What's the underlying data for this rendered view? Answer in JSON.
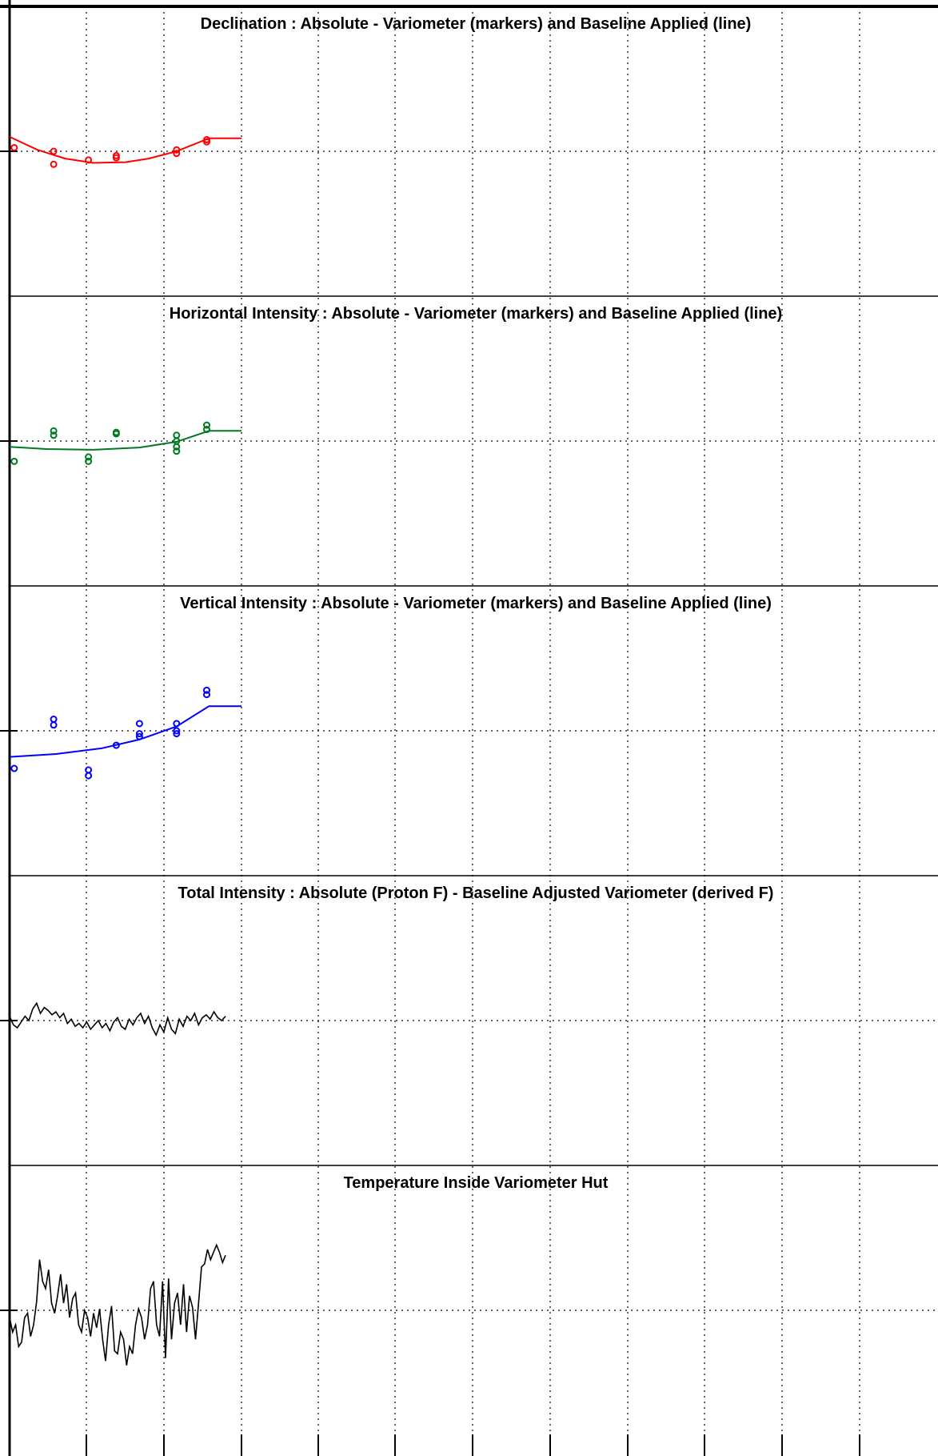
{
  "chart_data": [
    {
      "type": "scatter",
      "title": "Declination : Absolute - Variometer (markers) and Baseline Applied (line)",
      "color": "#ff0000",
      "ylim": [
        -1,
        1
      ],
      "markers": [
        [
          0.01,
          0.025
        ],
        [
          0.095,
          0.0
        ],
        [
          0.095,
          -0.09
        ],
        [
          0.17,
          -0.06
        ],
        [
          0.23,
          -0.045
        ],
        [
          0.23,
          -0.03
        ],
        [
          0.36,
          -0.015
        ],
        [
          0.36,
          0.01
        ],
        [
          0.425,
          0.065
        ],
        [
          0.425,
          0.08
        ]
      ],
      "line": [
        [
          0.0,
          0.1
        ],
        [
          0.06,
          0.01
        ],
        [
          0.12,
          -0.05
        ],
        [
          0.18,
          -0.08
        ],
        [
          0.25,
          -0.075
        ],
        [
          0.3,
          -0.05
        ],
        [
          0.36,
          -0.0
        ],
        [
          0.43,
          0.09
        ],
        [
          0.5,
          0.09
        ]
      ]
    },
    {
      "type": "scatter",
      "title": "Horizontal Intensity : Absolute - Variometer (markers) and Baseline Applied (line)",
      "color": "#007a20",
      "ylim": [
        -1,
        1
      ],
      "markers": [
        [
          0.01,
          -0.14
        ],
        [
          0.095,
          0.04
        ],
        [
          0.095,
          0.07
        ],
        [
          0.17,
          -0.14
        ],
        [
          0.17,
          -0.11
        ],
        [
          0.23,
          0.05
        ],
        [
          0.23,
          0.06
        ],
        [
          0.36,
          -0.07
        ],
        [
          0.36,
          -0.04
        ],
        [
          0.36,
          0.0
        ],
        [
          0.36,
          0.04
        ],
        [
          0.425,
          0.08
        ],
        [
          0.425,
          0.11
        ]
      ],
      "line": [
        [
          0.0,
          -0.04
        ],
        [
          0.08,
          -0.055
        ],
        [
          0.18,
          -0.06
        ],
        [
          0.28,
          -0.045
        ],
        [
          0.36,
          -0.005
        ],
        [
          0.43,
          0.07
        ],
        [
          0.5,
          0.07
        ]
      ]
    },
    {
      "type": "scatter",
      "title": "Vertical Intensity : Absolute - Variometer (markers) and Baseline Applied (line)",
      "color": "#0000ff",
      "ylim": [
        -1,
        1
      ],
      "markers": [
        [
          0.01,
          -0.26
        ],
        [
          0.095,
          0.04
        ],
        [
          0.095,
          0.08
        ],
        [
          0.17,
          -0.27
        ],
        [
          0.17,
          -0.31
        ],
        [
          0.23,
          -0.1
        ],
        [
          0.28,
          -0.04
        ],
        [
          0.28,
          -0.02
        ],
        [
          0.28,
          0.05
        ],
        [
          0.36,
          -0.02
        ],
        [
          0.36,
          0.0
        ],
        [
          0.36,
          0.05
        ],
        [
          0.425,
          0.25
        ],
        [
          0.425,
          0.28
        ]
      ],
      "line": [
        [
          0.0,
          -0.18
        ],
        [
          0.1,
          -0.16
        ],
        [
          0.2,
          -0.12
        ],
        [
          0.28,
          -0.06
        ],
        [
          0.36,
          0.03
        ],
        [
          0.43,
          0.17
        ],
        [
          0.5,
          0.17
        ]
      ]
    },
    {
      "type": "line",
      "title": "Total Intensity : Absolute (Proton F) - Baseline Adjusted Variometer (derived F)",
      "color": "#000000",
      "ylim": [
        -1,
        1
      ],
      "values": [
        0.03,
        -0.03,
        -0.05,
        -0.01,
        0.03,
        0.0,
        0.08,
        0.12,
        0.05,
        0.09,
        0.07,
        0.04,
        0.06,
        0.02,
        0.05,
        -0.02,
        0.01,
        -0.04,
        -0.02,
        -0.05,
        -0.01,
        -0.06,
        -0.03,
        0.0,
        -0.05,
        -0.02,
        -0.07,
        -0.01,
        0.02,
        -0.04,
        -0.06,
        0.01,
        -0.03,
        0.02,
        0.05,
        -0.02,
        0.03,
        -0.05,
        -0.1,
        -0.03,
        -0.08,
        0.02,
        -0.06,
        -0.09,
        0.01,
        -0.04,
        0.03,
        0.0,
        0.05,
        -0.03,
        0.02,
        0.04,
        0.01,
        0.06,
        0.02,
        0.0,
        0.03
      ]
    },
    {
      "type": "line",
      "title": "Temperature Inside Variometer Hut",
      "color": "#000000",
      "ylim": [
        -1,
        1
      ],
      "values": [
        -0.05,
        -0.15,
        -0.1,
        -0.25,
        -0.22,
        -0.05,
        -0.02,
        -0.18,
        -0.1,
        0.06,
        0.35,
        0.2,
        0.15,
        0.28,
        0.05,
        -0.02,
        0.1,
        0.25,
        0.05,
        0.18,
        -0.05,
        0.08,
        0.12,
        -0.1,
        -0.15,
        0.0,
        -0.05,
        -0.18,
        -0.02,
        -0.12,
        0.01,
        -0.2,
        -0.35,
        -0.1,
        0.03,
        -0.28,
        -0.3,
        -0.15,
        -0.2,
        -0.38,
        -0.25,
        -0.3,
        -0.1,
        0.01,
        -0.05,
        -0.2,
        -0.1,
        0.15,
        0.2,
        -0.1,
        -0.18,
        0.2,
        -0.33,
        0.22,
        -0.2,
        0.05,
        0.12,
        -0.1,
        0.18,
        -0.15,
        0.1,
        0.02,
        -0.2,
        0.05,
        0.3,
        0.32,
        0.42,
        0.35,
        0.4,
        0.45,
        0.4,
        0.33,
        0.38
      ]
    }
  ]
}
